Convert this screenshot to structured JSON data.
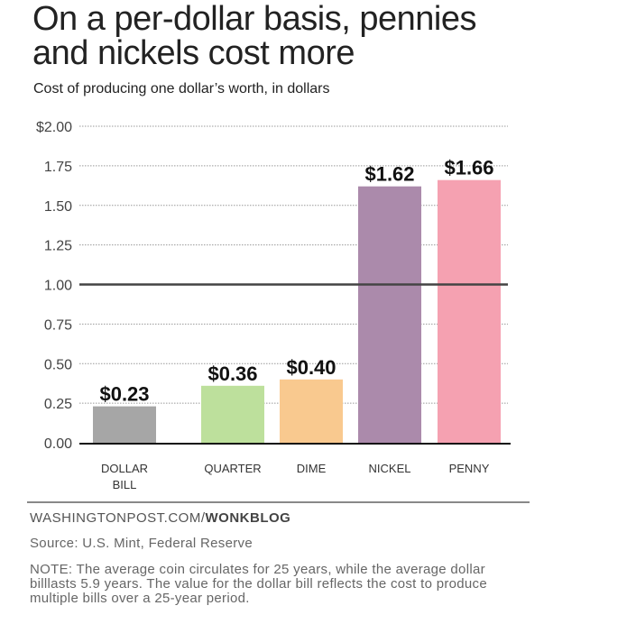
{
  "chart_data": {
    "type": "bar",
    "title": "On a per-dollar basis, pennies and nickels cost more",
    "subtitle": "Cost of producing one dollar’s worth, in dollars",
    "categories": [
      "DOLLAR BILL",
      "QUARTER",
      "DIME",
      "NICKEL",
      "PENNY"
    ],
    "values": [
      0.23,
      0.36,
      0.4,
      1.62,
      1.66
    ],
    "data_labels": [
      "$0.23",
      "$0.36",
      "$0.40",
      "$1.62",
      "$1.66"
    ],
    "colors": [
      "#a6a6a6",
      "#bde09c",
      "#f9c98f",
      "#ab8aab",
      "#f5a1b1"
    ],
    "ylim": [
      0,
      2
    ],
    "yticks": [
      0,
      0.25,
      0.5,
      0.75,
      1.0,
      1.25,
      1.5,
      1.75,
      2.0
    ],
    "ytick_labels": [
      "0.00",
      "0.25",
      "0.50",
      "0.75",
      "1.00",
      "1.25",
      "1.50",
      "1.75",
      "$2.00"
    ],
    "reference_line": 1.0,
    "grid": true,
    "xlabel": "",
    "ylabel": ""
  },
  "footer": {
    "credit_site": "WASHINGTONPOST.COM/",
    "credit_blog": "WONKBLOG",
    "source": "Source: U.S. Mint, Federal Reserve",
    "note": "NOTE: The average coin circulates for 25 years, while the average dollar billlasts 5.9 years. The value for the dollar bill reflects the cost to produce multiple bills over a 25-year period."
  }
}
